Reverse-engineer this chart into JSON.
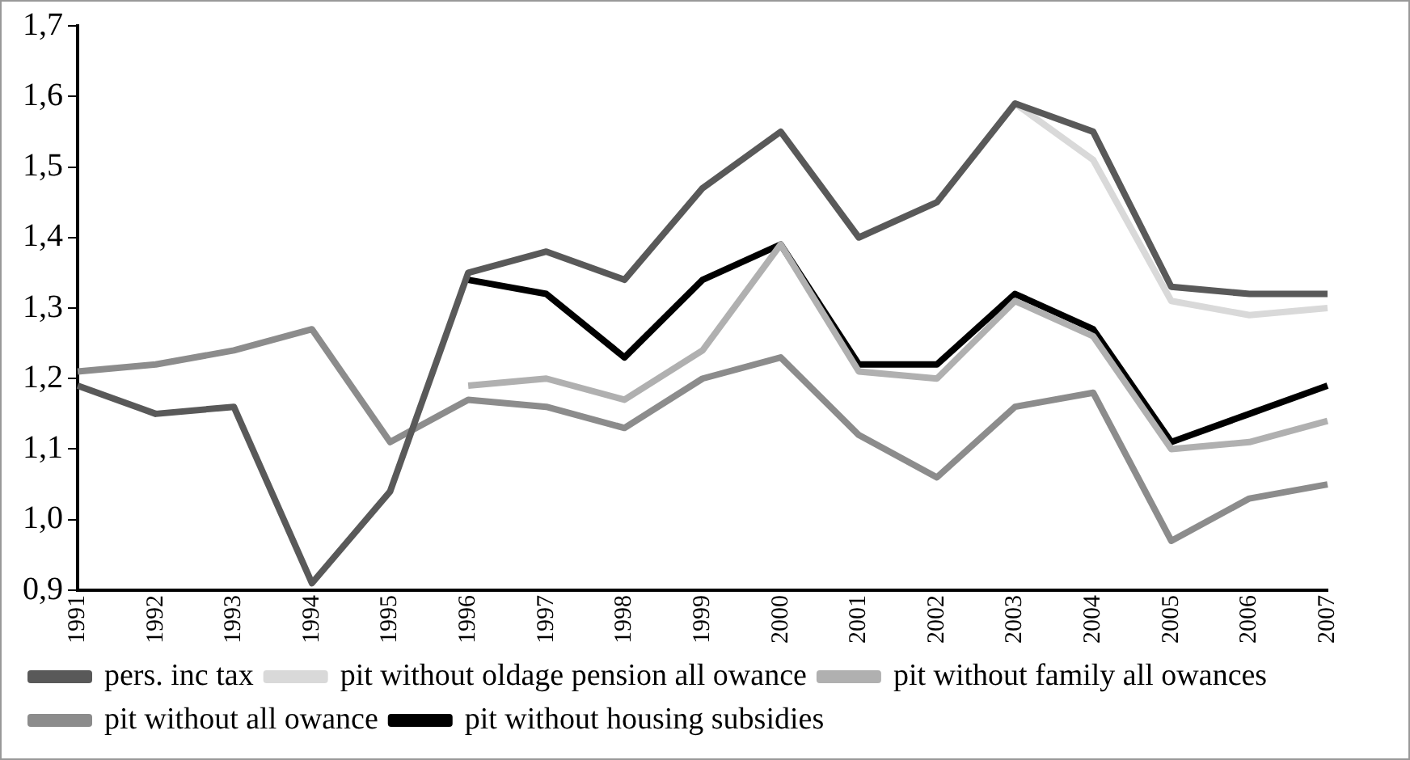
{
  "chart_data": {
    "type": "line",
    "categories": [
      "1991",
      "1992",
      "1993",
      "1994",
      "1995",
      "1996",
      "1997",
      "1998",
      "1999",
      "2000",
      "2001",
      "2002",
      "2003",
      "2004",
      "2005",
      "2006",
      "2007"
    ],
    "series": [
      {
        "name": "pers. inc tax",
        "color": "#595959",
        "values": [
          1.19,
          1.15,
          1.16,
          0.91,
          1.04,
          1.35,
          1.38,
          1.34,
          1.47,
          1.55,
          1.4,
          1.45,
          1.59,
          1.55,
          1.33,
          1.32,
          1.32
        ]
      },
      {
        "name": "pit without oldage pension all owance",
        "color": "#d9d9d9",
        "values": [
          null,
          null,
          null,
          null,
          null,
          null,
          null,
          null,
          null,
          null,
          null,
          null,
          1.59,
          1.51,
          1.31,
          1.29,
          1.3
        ]
      },
      {
        "name": "pit without family all owances",
        "color": "#b0b0b0",
        "values": [
          null,
          null,
          null,
          null,
          null,
          1.19,
          1.2,
          1.17,
          1.24,
          1.39,
          1.21,
          1.2,
          1.31,
          1.26,
          1.1,
          1.11,
          1.14
        ]
      },
      {
        "name": "pit without all owance",
        "color": "#8c8c8c",
        "values": [
          1.21,
          1.22,
          1.24,
          1.27,
          1.11,
          1.17,
          1.16,
          1.13,
          1.2,
          1.23,
          1.12,
          1.06,
          1.16,
          1.18,
          0.97,
          1.03,
          1.05
        ]
      },
      {
        "name": "pit without housing subsidies",
        "color": "#000000",
        "values": [
          null,
          null,
          null,
          null,
          null,
          1.34,
          1.32,
          1.23,
          1.34,
          1.39,
          1.22,
          1.22,
          1.32,
          1.27,
          1.11,
          1.15,
          1.19
        ]
      }
    ],
    "ylim": [
      0.9,
      1.7
    ],
    "yticks": [
      {
        "value": 0.9,
        "label": "0,9"
      },
      {
        "value": 1.0,
        "label": "1,0"
      },
      {
        "value": 1.1,
        "label": "1,1"
      },
      {
        "value": 1.2,
        "label": "1,2"
      },
      {
        "value": 1.3,
        "label": "1,3"
      },
      {
        "value": 1.4,
        "label": "1,4"
      },
      {
        "value": 1.5,
        "label": "1,5"
      },
      {
        "value": 1.6,
        "label": "1,6"
      },
      {
        "value": 1.7,
        "label": "1,7"
      }
    ],
    "grid": false,
    "legend": "bottom",
    "marker": "none",
    "line_style": "solid"
  }
}
